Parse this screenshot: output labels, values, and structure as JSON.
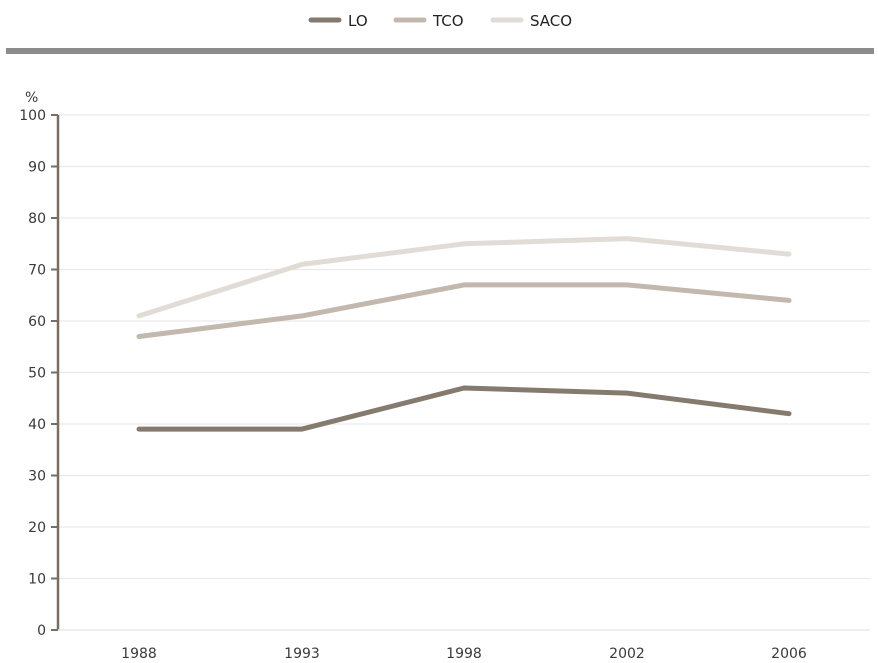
{
  "chart_data": {
    "type": "line",
    "x": [
      "1988",
      "1993",
      "1998",
      "2002",
      "2006"
    ],
    "series": [
      {
        "name": "LO",
        "color": "#857a6e",
        "values": [
          39,
          39,
          47,
          46,
          42
        ]
      },
      {
        "name": "TCO",
        "color": "#c2b8ad",
        "values": [
          57,
          61,
          67,
          67,
          64
        ]
      },
      {
        "name": "SACO",
        "color": "#e1dcd5",
        "values": [
          61,
          71,
          75,
          76,
          73
        ]
      }
    ],
    "ylabel": "%",
    "ylim": [
      0,
      100
    ],
    "yticks": [
      0,
      10,
      20,
      30,
      40,
      50,
      60,
      70,
      80,
      90,
      100
    ],
    "grid": true,
    "legend_position": "top-center"
  },
  "colors": {
    "divider": "#8c8c8c",
    "axis": "#7a6e62",
    "grid": "#e9e9e9"
  }
}
